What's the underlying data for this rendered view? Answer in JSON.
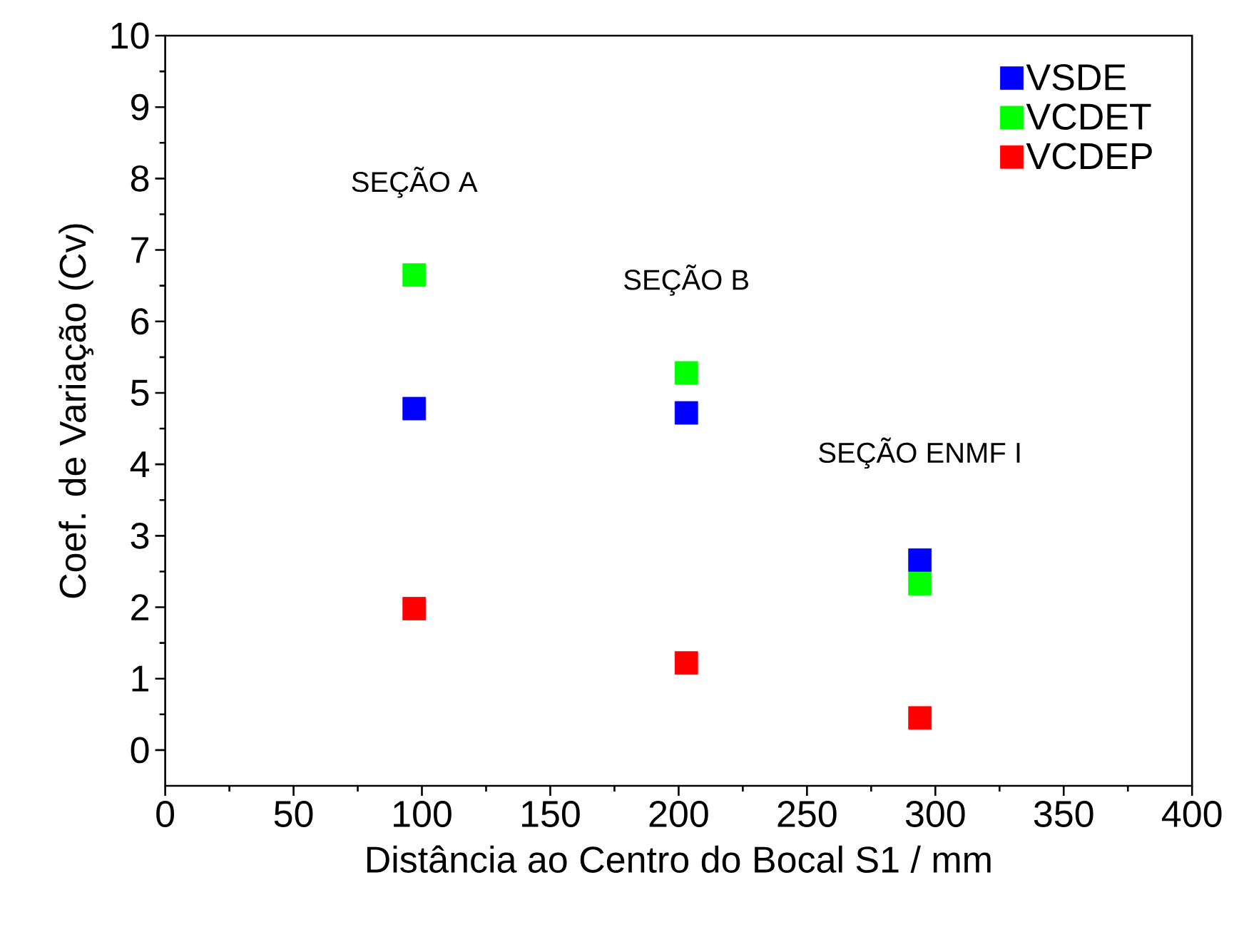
{
  "chart_data": {
    "type": "scatter",
    "xlabel": "Distância ao Centro do Bocal S1 / mm",
    "ylabel": "Coef. de Variação (Cv)",
    "x": [
      97,
      203,
      294
    ],
    "series": [
      {
        "name": "VSDE",
        "color": "#0000ff",
        "values": [
          4.78,
          4.72,
          2.66
        ]
      },
      {
        "name": "VCDET",
        "color": "#00ff00",
        "values": [
          6.65,
          5.28,
          2.33
        ]
      },
      {
        "name": "VCDEP",
        "color": "#ff0000",
        "values": [
          1.98,
          1.22,
          0.45
        ]
      }
    ],
    "annotations": [
      "SEÇÃO A",
      "SEÇÃO B",
      "SEÇÃO ENMF I"
    ],
    "xlim": [
      0,
      400
    ],
    "ylim": [
      -0.5,
      10
    ],
    "xticks": [
      0,
      50,
      100,
      150,
      200,
      250,
      300,
      350,
      400
    ],
    "yticks": [
      0,
      1,
      2,
      3,
      4,
      5,
      6,
      7,
      8,
      9,
      10
    ],
    "marker": "square",
    "legend": "top right",
    "grid": false
  }
}
